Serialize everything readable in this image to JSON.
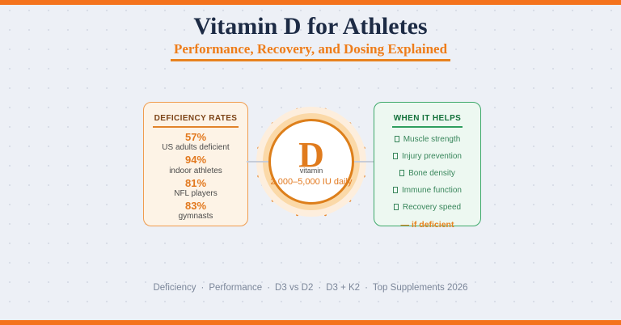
{
  "colors": {
    "accent_orange": "#f4731d",
    "title_navy": "#1d2b45",
    "subtitle_orange": "#ee7d1a",
    "deficiency_border": "#f09c4e",
    "deficiency_bg": "#fdf3e6",
    "stat_value_orange": "#e2791f",
    "benefits_border": "#3fa96b",
    "benefits_bg": "#edf8f1",
    "benefit_green": "#38865b",
    "sun_border": "#dd7f1b",
    "footer_gray": "#7b8699",
    "background": "#edf0f6"
  },
  "header": {
    "title": "Vitamin D for Athletes",
    "subtitle": "Performance, Recovery, and Dosing Explained"
  },
  "deficiency_card": {
    "title": "DEFICIENCY RATES",
    "stats": [
      {
        "value": "57%",
        "label": "US adults deficient"
      },
      {
        "value": "94%",
        "label": "indoor athletes"
      },
      {
        "value": "81%",
        "label": "NFL players"
      },
      {
        "value": "83%",
        "label": "gymnasts"
      }
    ]
  },
  "vitamin_badge": {
    "letter": "D",
    "label": "vitamin",
    "dose": "2,000–5,000 IU daily"
  },
  "benefits_card": {
    "title": "WHEN IT HELPS",
    "items": [
      "Muscle strength",
      "Injury prevention",
      "Bone density",
      "Immune function",
      "Recovery speed"
    ],
    "footnote": "— if deficient"
  },
  "footer": {
    "separator": "·",
    "items": [
      "Deficiency",
      "Performance",
      "D3 vs D2",
      "D3 + K2",
      "Top Supplements 2026"
    ]
  }
}
